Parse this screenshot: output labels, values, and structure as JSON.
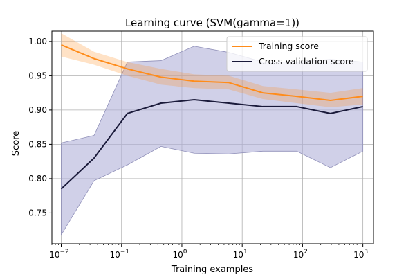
{
  "chart_data": {
    "type": "line",
    "title": "Learning curve (SVM(gamma=1))",
    "xlabel": "Training examples",
    "ylabel": "Score",
    "xscale": "log",
    "xlim": [
      0.007,
      1500
    ],
    "ylim": [
      0.705,
      1.015
    ],
    "grid": true,
    "legend_position": "top-right",
    "x_ticks": [
      {
        "value": 0.01,
        "mantissa": "10",
        "exp": "−2"
      },
      {
        "value": 0.1,
        "mantissa": "10",
        "exp": "−1"
      },
      {
        "value": 1,
        "mantissa": "10",
        "exp": "0"
      },
      {
        "value": 10,
        "mantissa": "10",
        "exp": "1"
      },
      {
        "value": 100,
        "mantissa": "10",
        "exp": "2"
      },
      {
        "value": 1000,
        "mantissa": "10",
        "exp": "3"
      }
    ],
    "y_ticks": [
      "0.75",
      "0.80",
      "0.85",
      "0.90",
      "0.95",
      "1.00"
    ],
    "x": [
      0.01,
      0.035,
      0.125,
      0.45,
      1.6,
      6,
      22,
      80,
      290,
      1000
    ],
    "series": [
      {
        "name": "Training score",
        "color": "#ff8c1a",
        "values": [
          0.995,
          0.975,
          0.96,
          0.948,
          0.942,
          0.94,
          0.925,
          0.92,
          0.914,
          0.92
        ],
        "band_lower": [
          0.978,
          0.966,
          0.95,
          0.937,
          0.932,
          0.93,
          0.916,
          0.91,
          0.904,
          0.908
        ],
        "band_upper": [
          1.012,
          0.985,
          0.97,
          0.96,
          0.952,
          0.95,
          0.935,
          0.93,
          0.925,
          0.932
        ]
      },
      {
        "name": "Cross-validation score",
        "color": "#1a1a3a",
        "band_color": "#b0b0d8",
        "values": [
          0.785,
          0.83,
          0.895,
          0.91,
          0.915,
          0.91,
          0.905,
          0.905,
          0.895,
          0.905
        ],
        "band_lower": [
          0.718,
          0.797,
          0.82,
          0.847,
          0.837,
          0.836,
          0.84,
          0.84,
          0.816,
          0.84
        ],
        "band_upper": [
          0.852,
          0.863,
          0.97,
          0.972,
          0.993,
          0.984,
          0.97,
          0.97,
          0.974,
          0.97
        ]
      }
    ]
  }
}
